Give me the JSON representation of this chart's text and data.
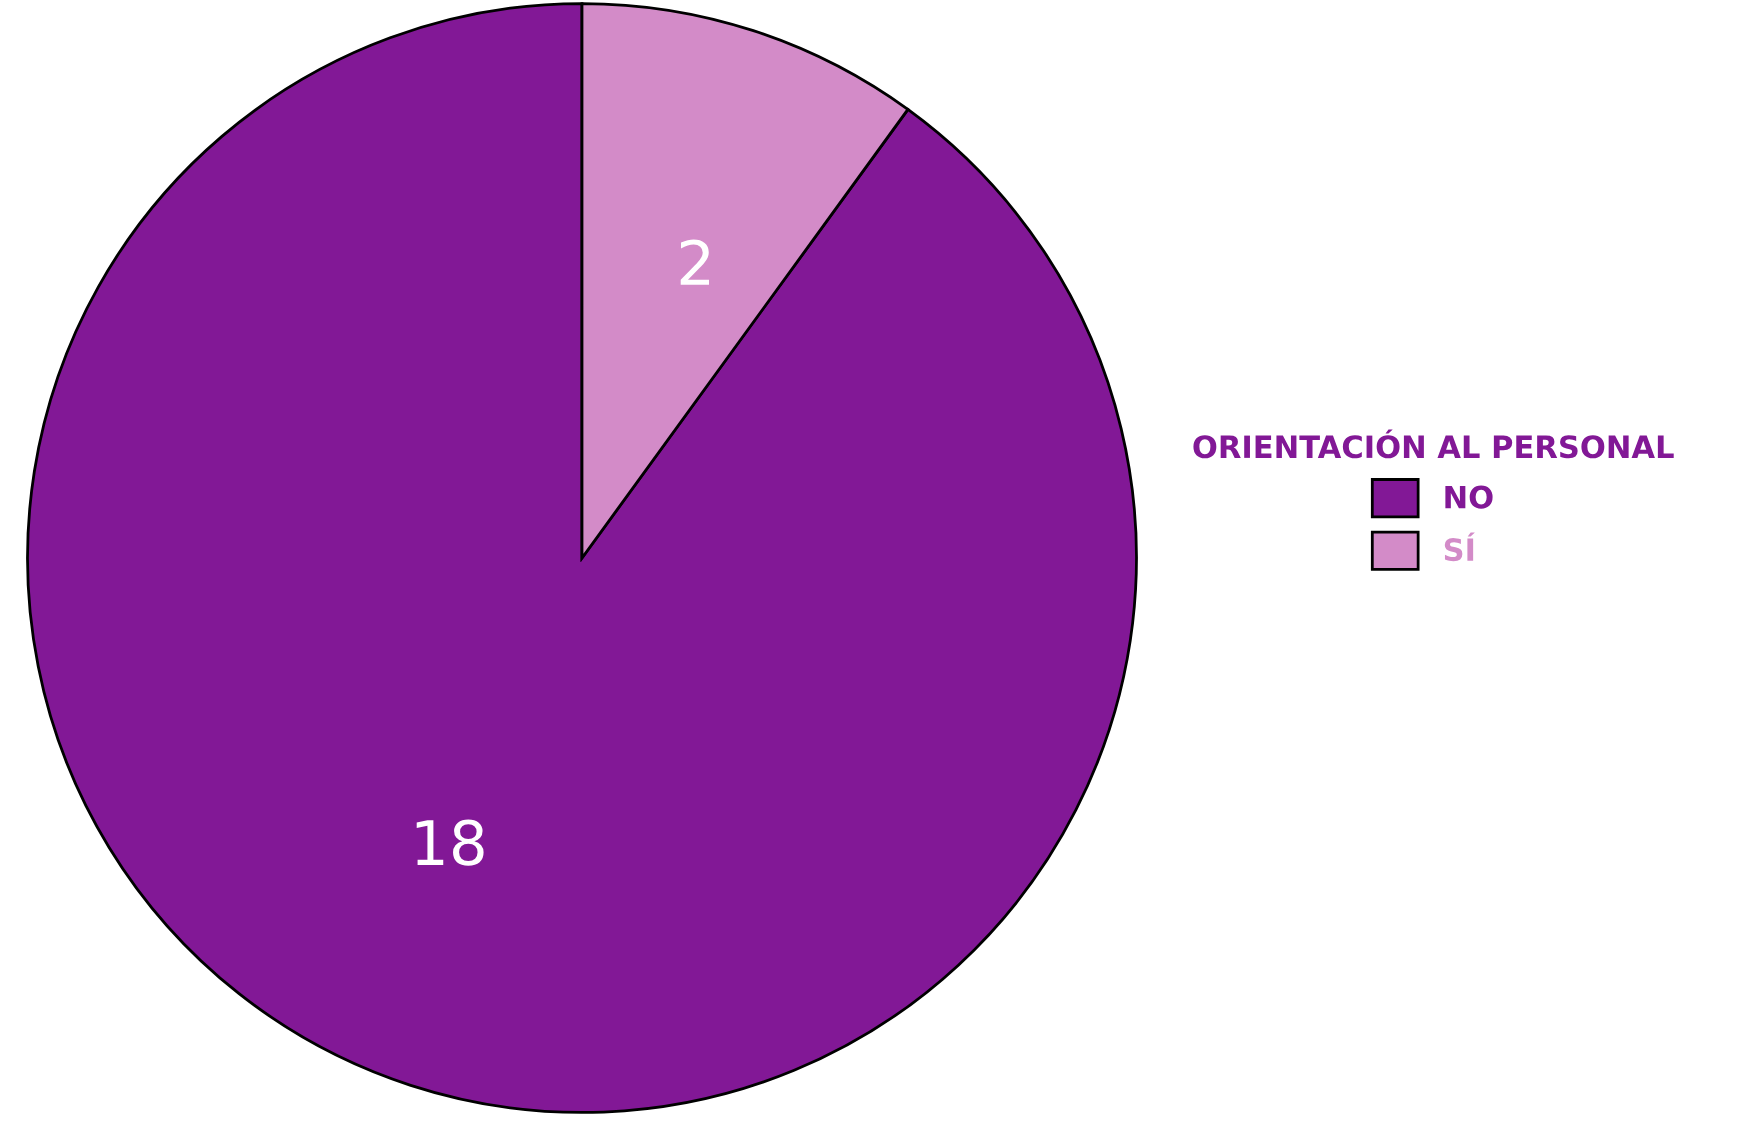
{
  "chart_data": {
    "type": "pie",
    "categories": [
      "NO",
      "SÍ"
    ],
    "values": [
      18,
      2
    ],
    "colors": [
      "#821896",
      "#d38bc8"
    ],
    "legend_title": "ORIENTACIÓN AL PERSONAL",
    "legend": "right",
    "data_labels": true
  }
}
